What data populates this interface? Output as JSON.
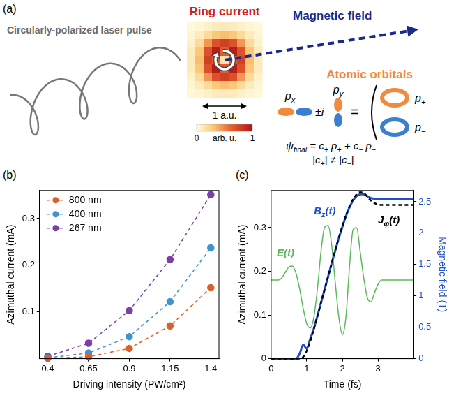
{
  "diagram": {
    "label": "(a)",
    "pulse_label": "Circularly-polarized laser pulse",
    "ring_current": {
      "title": "Ring current",
      "cells": [
        [
          0.02,
          0.04,
          0.07,
          0.1,
          0.11,
          0.1,
          0.07,
          0.04,
          0.02
        ],
        [
          0.04,
          0.1,
          0.2,
          0.3,
          0.33,
          0.3,
          0.2,
          0.1,
          0.04
        ],
        [
          0.07,
          0.2,
          0.45,
          0.7,
          0.78,
          0.7,
          0.45,
          0.2,
          0.07
        ],
        [
          0.1,
          0.3,
          0.7,
          0.95,
          0.65,
          0.95,
          0.7,
          0.3,
          0.1
        ],
        [
          0.11,
          0.33,
          0.78,
          0.65,
          0.15,
          0.65,
          0.78,
          0.33,
          0.11
        ],
        [
          0.1,
          0.3,
          0.7,
          0.95,
          0.65,
          0.95,
          0.7,
          0.3,
          0.1
        ],
        [
          0.07,
          0.2,
          0.45,
          0.7,
          0.78,
          0.7,
          0.45,
          0.2,
          0.07
        ],
        [
          0.04,
          0.1,
          0.2,
          0.3,
          0.33,
          0.3,
          0.2,
          0.1,
          0.04
        ],
        [
          0.02,
          0.04,
          0.07,
          0.1,
          0.11,
          0.1,
          0.07,
          0.04,
          0.02
        ]
      ],
      "colorbar": {
        "range": [
          0,
          1
        ],
        "ticks": [
          0,
          1
        ],
        "label": "arb. u."
      },
      "scale_bar": "1 a.u."
    },
    "magnetic_field": "Magnetic field",
    "orbitals": {
      "title": "Atomic orbitals",
      "px": [
        "p",
        "x"
      ],
      "py": [
        "p",
        "y"
      ],
      "combination": [
        "±i"
      ],
      "equals": [
        "="
      ],
      "p_plus": [
        "p",
        "+"
      ],
      "p_minus": [
        "p",
        "−"
      ],
      "wavefunction": [
        "ψ",
        "final",
        " = c",
        "+",
        " p",
        "+",
        " + c",
        "−",
        " p",
        "−"
      ],
      "condition": [
        "|c",
        "+",
        "| ≠ |c",
        "−",
        "|"
      ]
    }
  },
  "chart_data": [
    {
      "label": "(b)",
      "type": "line",
      "xlabel": "Driving intensity (PW/cm²)",
      "ylabel": "Azimuthal current (mA)",
      "xlim": [
        0.35,
        1.45
      ],
      "xticks": [
        0.4,
        0.65,
        0.9,
        1.15,
        1.4
      ],
      "ylim": [
        0,
        0.36
      ],
      "yticks": [
        0.1,
        0.2,
        0.3
      ],
      "grid": false,
      "legend": "upper left",
      "x": [
        0.4,
        0.65,
        0.9,
        1.15,
        1.4
      ],
      "series": [
        {
          "name": "800 nm",
          "color": "#d9622b",
          "marker": "circle",
          "line_style": "dashed",
          "values": [
            0.001,
            0.004,
            0.022,
            0.07,
            0.152
          ]
        },
        {
          "name": "400 nm",
          "color": "#3e95cd",
          "marker": "circle",
          "line_style": "dashed",
          "values": [
            0.002,
            0.012,
            0.047,
            0.122,
            0.237
          ]
        },
        {
          "name": "267 nm",
          "color": "#7b3fa8",
          "marker": "circle",
          "line_style": "dashed",
          "values": [
            0.005,
            0.033,
            0.103,
            0.212,
            0.351
          ]
        }
      ]
    },
    {
      "label": "(c)",
      "type": "line",
      "xlabel": "Time (fs)",
      "ylabel": "Azimuthal current (mA)",
      "y2label": "Magnetic field (T)",
      "xlim": [
        0,
        4
      ],
      "xticks": [
        0,
        1,
        2,
        3
      ],
      "ylim": [
        0,
        0.385
      ],
      "yticks": [
        0,
        0.1,
        0.2,
        0.3
      ],
      "y2lim": [
        0,
        2.68
      ],
      "y2ticks": [
        0,
        0.5,
        1,
        1.5,
        2,
        2.5
      ],
      "grid": false,
      "x": [
        0,
        0.1,
        0.2,
        0.3,
        0.4,
        0.5,
        0.6,
        0.7,
        0.8,
        0.9,
        1.0,
        1.1,
        1.2,
        1.3,
        1.4,
        1.5,
        1.6,
        1.7,
        1.8,
        1.9,
        2.0,
        2.1,
        2.2,
        2.3,
        2.4,
        2.5,
        2.6,
        2.7,
        2.8,
        2.9,
        3.0,
        3.1,
        3.2,
        3.3,
        3.4,
        3.5,
        3.6,
        3.7,
        3.8,
        3.9,
        4.0
      ],
      "series": [
        {
          "label": [
            "E(t)"
          ],
          "color": "#5cb85c",
          "line_style": "solid",
          "values": [
            0.18,
            0.18,
            0.18,
            0.185,
            0.198,
            0.21,
            0.212,
            0.195,
            0.16,
            0.115,
            0.08,
            0.07,
            0.095,
            0.16,
            0.245,
            0.3,
            0.305,
            0.26,
            0.175,
            0.095,
            0.055,
            0.095,
            0.21,
            0.295,
            0.3,
            0.245,
            0.185,
            0.14,
            0.13,
            0.15,
            0.17,
            0.18,
            0.18,
            0.18,
            0.18,
            0.18,
            0.18,
            0.18,
            0.18,
            0.18,
            0.18
          ]
        },
        {
          "label": [
            "J",
            "φ",
            "(t)"
          ],
          "color": "#000000",
          "line_style": "dashed",
          "values": [
            0,
            0,
            0,
            0,
            0,
            0,
            0,
            0,
            0,
            0.004,
            0.018,
            0.04,
            0.068,
            0.098,
            0.128,
            0.158,
            0.188,
            0.218,
            0.248,
            0.277,
            0.303,
            0.328,
            0.349,
            0.365,
            0.376,
            0.381,
            0.379,
            0.371,
            0.362,
            0.356,
            0.353,
            0.352,
            0.352,
            0.352,
            0.352,
            0.352,
            0.352,
            0.352,
            0.352,
            0.352,
            0.352
          ]
        },
        {
          "label": [
            "B",
            "z",
            "(t)"
          ],
          "color": "#1f4fd1",
          "line_style": "solid",
          "axis": "y2",
          "values": [
            0,
            0,
            0,
            0,
            0,
            0,
            0,
            0,
            0.08,
            0.22,
            0.16,
            0.32,
            0.48,
            0.68,
            0.89,
            1.1,
            1.31,
            1.52,
            1.72,
            1.92,
            2.1,
            2.27,
            2.41,
            2.52,
            2.59,
            2.62,
            2.62,
            2.59,
            2.56,
            2.55,
            2.55,
            2.55,
            2.55,
            2.55,
            2.55,
            2.55,
            2.55,
            2.55,
            2.55,
            2.55,
            2.55
          ]
        }
      ]
    }
  ]
}
